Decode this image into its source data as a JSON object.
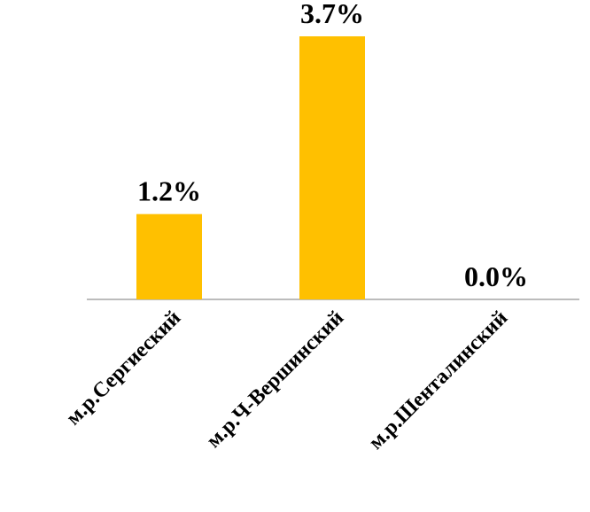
{
  "chart_data": {
    "type": "bar",
    "categories": [
      "м.р.Сергиеский",
      "м.р.Ч-Вершинский",
      "м.р.Шенталинский"
    ],
    "values": [
      1.2,
      3.7,
      0.0
    ],
    "data_labels": [
      "1.2%",
      "3.7%",
      "0.0%"
    ],
    "title": "",
    "xlabel": "",
    "ylabel": "",
    "ylim": [
      0,
      3.7
    ],
    "grid": false,
    "legend": "none",
    "colors": {
      "bar": "#ffc000",
      "axis": "#a6a6a6"
    }
  }
}
